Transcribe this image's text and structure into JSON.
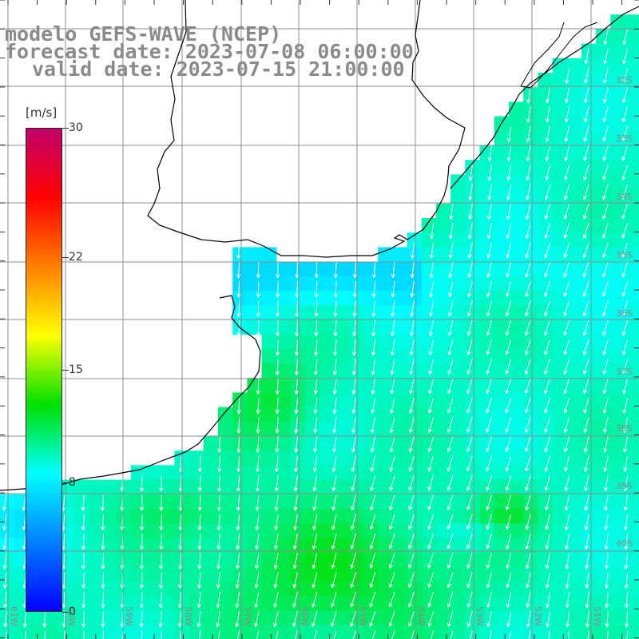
{
  "title": {
    "line1": "modelo GEFS-WAVE (NCEP)",
    "line2": "forecast date: 2023-07-08 06:00:00",
    "line3": "valid date: 2023-07-15 21:00:00"
  },
  "colorbar": {
    "unit": "[m/s]",
    "min": 0,
    "max": 30,
    "ticks": [
      {
        "value": 30,
        "label": "30"
      },
      {
        "value": 22,
        "label": "22"
      },
      {
        "value": 15,
        "label": "15"
      },
      {
        "value": 8,
        "label": "8"
      },
      {
        "value": 0,
        "label": "0"
      }
    ],
    "colors": [
      "#0000ff",
      "#0080ff",
      "#00ffff",
      "#00e000",
      "#ffff00",
      "#ff8000",
      "#ff0000",
      "#c0006a"
    ]
  },
  "map": {
    "lon_labels": [
      "61W",
      "60W",
      "59W",
      "58W",
      "57W",
      "56W",
      "55W",
      "54W",
      "53W",
      "52W",
      "51W"
    ],
    "lat_labels": [
      "32S",
      "33S",
      "34S",
      "35S",
      "36S",
      "37S",
      "38S",
      "39S",
      "40S"
    ],
    "colors": {
      "land": "#ffffff",
      "grid": "#8c8c8c",
      "coast": "#000000",
      "arrow": "#ffffff"
    }
  }
}
